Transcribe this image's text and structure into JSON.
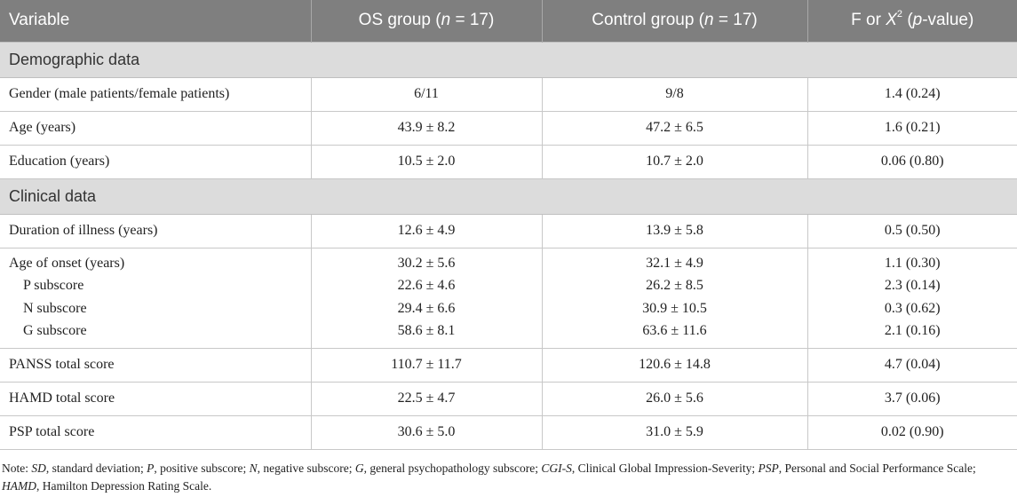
{
  "table": {
    "header": {
      "variable": "Variable",
      "os_group_prefix": "OS group (",
      "n_symbol": "n",
      "os_group_suffix": " = 17)",
      "control_group_prefix": "Control group (",
      "control_group_suffix": " = 17)",
      "stat_prefix": "F or ",
      "x_symbol": "X",
      "x_superscript": "2",
      "stat_open": " (",
      "p_symbol": "p",
      "stat_suffix": "-value)"
    },
    "sections": [
      {
        "title": "Demographic data",
        "rows": [
          {
            "variable": "Gender (male patients/female patients)",
            "os": "6/11",
            "control": "9/8",
            "stat": "1.4 (0.24)"
          },
          {
            "variable": "Age (years)",
            "os": "43.9 ± 8.2",
            "control": "47.2 ± 6.5",
            "stat": "1.6 (0.21)"
          },
          {
            "variable": "Education (years)",
            "os": "10.5 ± 2.0",
            "control": "10.7 ± 2.0",
            "stat": "0.06 (0.80)"
          }
        ]
      },
      {
        "title": "Clinical data",
        "rows": [
          {
            "variable": "Duration of illness (years)",
            "os": "12.6 ± 4.9",
            "control": "13.9 ± 5.8",
            "stat": "0.5 (0.50)"
          }
        ],
        "group": [
          {
            "variable": "Age of onset (years)",
            "os": "30.2 ± 5.6",
            "control": "32.1 ± 4.9",
            "stat": "1.1 (0.30)"
          },
          {
            "variable": "P subscore",
            "os": "22.6 ± 4.6",
            "control": "26.2 ± 8.5",
            "stat": "2.3 (0.14)"
          },
          {
            "variable": "N subscore",
            "os": "29.4 ± 6.6",
            "control": "30.9 ± 10.5",
            "stat": "0.3 (0.62)"
          },
          {
            "variable": "G subscore",
            "os": "58.6 ± 8.1",
            "control": "63.6 ± 11.6",
            "stat": "2.1 (0.16)"
          }
        ],
        "rows_after": [
          {
            "variable": "PANSS total score",
            "os": "110.7 ± 11.7",
            "control": "120.6 ± 14.8",
            "stat": "4.7 (0.04)"
          },
          {
            "variable": "HAMD total score",
            "os": "22.5 ± 4.7",
            "control": "26.0 ± 5.6",
            "stat": "3.7 (0.06)"
          },
          {
            "variable": "PSP total score",
            "os": "30.6 ± 5.0",
            "control": "31.0 ± 5.9",
            "stat": "0.02 (0.90)"
          }
        ]
      }
    ]
  },
  "note": {
    "prefix": "Note: ",
    "items": [
      {
        "abbr": "SD",
        "text": ", standard deviation; "
      },
      {
        "abbr": "P",
        "text": ", positive subscore; "
      },
      {
        "abbr": "N",
        "text": ", negative subscore; "
      },
      {
        "abbr": "G",
        "text": ", general psychopathology subscore; "
      },
      {
        "abbr": "CGI-S",
        "text": ", Clinical Global Impression-Severity; "
      },
      {
        "abbr": "PSP",
        "text": ", Personal and Social Performance Scale; "
      },
      {
        "abbr": "HAMD",
        "text": ", Hamilton Depression Rating Scale."
      }
    ]
  }
}
